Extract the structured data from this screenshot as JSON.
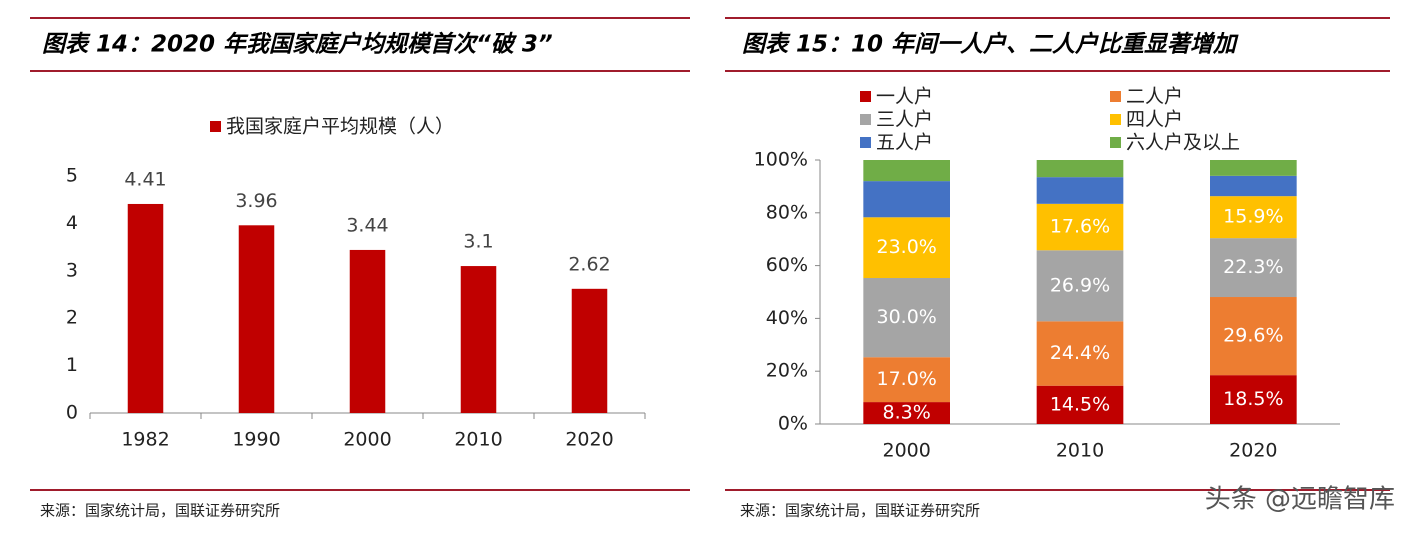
{
  "chart_data": [
    {
      "type": "bar",
      "title": "图表 14：2020 年我国家庭户均规模首次“破 3”",
      "categories": [
        "1982",
        "1990",
        "2000",
        "2010",
        "2020"
      ],
      "series": [
        {
          "name": "我国家庭户平均规模（人）",
          "color": "#c00000",
          "values": [
            4.41,
            3.96,
            3.44,
            3.1,
            2.62
          ]
        }
      ],
      "ylim": [
        0,
        5
      ],
      "yticks": [
        0,
        1,
        2,
        3,
        4,
        5
      ],
      "stacked": false,
      "source": "来源：国家统计局，国联证券研究所"
    },
    {
      "type": "bar",
      "title": "图表 15：10 年间一人户、二人户比重显著增加",
      "categories": [
        "2000",
        "2010",
        "2020"
      ],
      "stacked": true,
      "series": [
        {
          "name": "一人户",
          "color": "#c00000",
          "values": [
            8.3,
            14.5,
            18.5
          ],
          "value_labels": [
            "8.3%",
            "14.5%",
            "18.5%"
          ]
        },
        {
          "name": "二人户",
          "color": "#ed7d31",
          "values": [
            17.0,
            24.4,
            29.6
          ],
          "value_labels": [
            "17.0%",
            "24.4%",
            "29.6%"
          ]
        },
        {
          "name": "三人户",
          "color": "#a5a5a5",
          "values": [
            30.0,
            26.9,
            22.3
          ],
          "value_labels": [
            "30.0%",
            "26.9%",
            "22.3%"
          ]
        },
        {
          "name": "四人户",
          "color": "#ffc000",
          "values": [
            23.0,
            17.6,
            15.9
          ],
          "value_labels": [
            "23.0%",
            "17.6%",
            "15.9%"
          ]
        },
        {
          "name": "五人户",
          "color": "#4472c4",
          "values": [
            13.7,
            10.1,
            7.7
          ]
        },
        {
          "name": "六人户及以上",
          "color": "#70ad47",
          "values": [
            8.0,
            6.5,
            6.0
          ]
        }
      ],
      "ylim": [
        0,
        100
      ],
      "yticks": [
        {
          "value": 0,
          "label": "0%"
        },
        {
          "value": 20,
          "label": "20%"
        },
        {
          "value": 40,
          "label": "40%"
        },
        {
          "value": 60,
          "label": "60%"
        },
        {
          "value": 80,
          "label": "80%"
        },
        {
          "value": 100,
          "label": "100%"
        }
      ],
      "source": "来源：国家统计局，国联证券研究所"
    }
  ],
  "watermark": "头条 @远瞻智库"
}
